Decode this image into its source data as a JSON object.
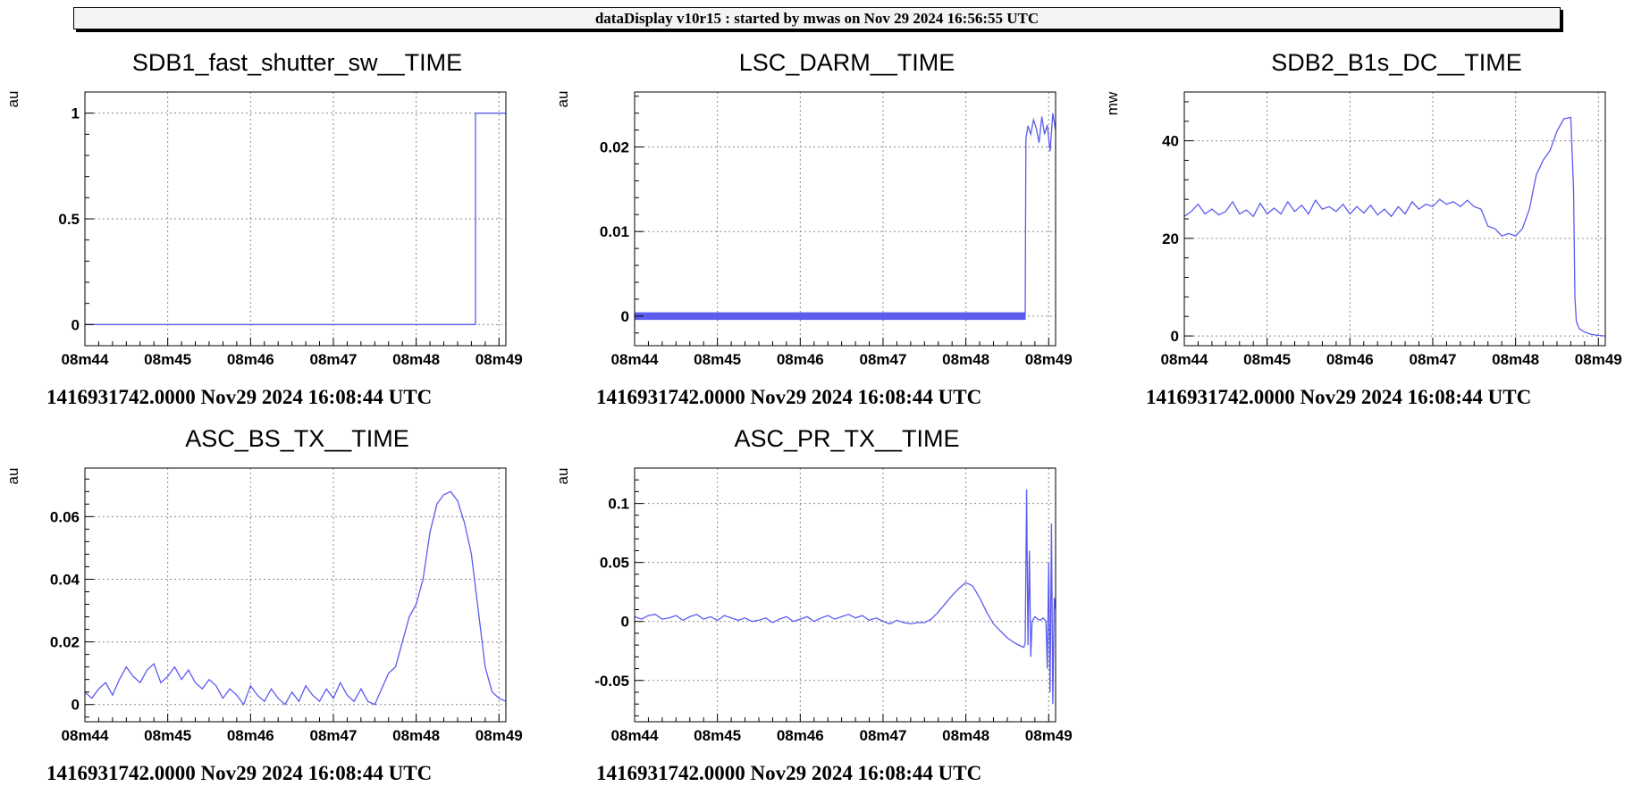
{
  "header": {
    "title": "dataDisplay v10r15 : started by mwas on Nov 29 2024 16:56:55 UTC"
  },
  "colors": {
    "trace": "#5b5bf0",
    "grid": "#8a8a8a",
    "axis": "#000000"
  },
  "chart_data": [
    {
      "type": "line",
      "title": "SDB1_fast_shutter_sw__TIME",
      "ylabel": "au",
      "footer": "1416931742.0000 Nov29 2024 16:08:44 UTC",
      "xlim": [
        0,
        305
      ],
      "ylim": [
        -0.1,
        1.1
      ],
      "x_ticks": [
        {
          "v": 0,
          "label": "08m44"
        },
        {
          "v": 60,
          "label": "08m45"
        },
        {
          "v": 120,
          "label": "08m46"
        },
        {
          "v": 180,
          "label": "08m47"
        },
        {
          "v": 240,
          "label": "08m48"
        },
        {
          "v": 300,
          "label": "08m49"
        }
      ],
      "y_ticks": [
        {
          "v": 0,
          "label": "0"
        },
        {
          "v": 0.5,
          "label": "0.5"
        },
        {
          "v": 1,
          "label": "1"
        }
      ],
      "series": [
        {
          "step": true,
          "x": [
            -5,
            283,
            283,
            305
          ],
          "y": [
            0,
            0,
            1,
            1
          ]
        }
      ]
    },
    {
      "type": "line",
      "title": "LSC_DARM__TIME",
      "ylabel": "au",
      "footer": "1416931742.0000 Nov29 2024 16:08:44 UTC",
      "xlim": [
        0,
        305
      ],
      "ylim": [
        -0.0035,
        0.0265
      ],
      "x_ticks": [
        {
          "v": 0,
          "label": "08m44"
        },
        {
          "v": 60,
          "label": "08m45"
        },
        {
          "v": 120,
          "label": "08m46"
        },
        {
          "v": 180,
          "label": "08m47"
        },
        {
          "v": 240,
          "label": "08m48"
        },
        {
          "v": 300,
          "label": "08m49"
        }
      ],
      "y_ticks": [
        {
          "v": 0,
          "label": "0"
        },
        {
          "v": 0.01,
          "label": "0.01"
        },
        {
          "v": 0.02,
          "label": "0.02"
        }
      ],
      "series": [
        {
          "band": true,
          "x": [
            -5,
            60,
            120,
            180,
            240,
            283
          ],
          "ymin": [
            -0.0004,
            -0.0004,
            -0.0004,
            -0.0004,
            -0.0004,
            -0.0004
          ],
          "ymax": [
            0.0004,
            0.0004,
            0.0004,
            0.0004,
            0.0004,
            0.0004
          ]
        },
        {
          "x": [
            283,
            283.5,
            285,
            287,
            289,
            291,
            293,
            295,
            297,
            299,
            301,
            303,
            305
          ],
          "y": [
            0,
            0.021,
            0.0225,
            0.0215,
            0.0232,
            0.0222,
            0.0205,
            0.0236,
            0.0215,
            0.0226,
            0.0195,
            0.024,
            0.022
          ]
        }
      ]
    },
    {
      "type": "line",
      "title": "SDB2_B1s_DC__TIME",
      "ylabel": "mw",
      "footer": "1416931742.0000 Nov29 2024 16:08:44 UTC",
      "xlim": [
        0,
        305
      ],
      "ylim": [
        -2,
        50
      ],
      "x_ticks": [
        {
          "v": 0,
          "label": "08m44"
        },
        {
          "v": 60,
          "label": "08m45"
        },
        {
          "v": 120,
          "label": "08m46"
        },
        {
          "v": 180,
          "label": "08m47"
        },
        {
          "v": 240,
          "label": "08m48"
        },
        {
          "v": 300,
          "label": "08m49"
        }
      ],
      "y_ticks": [
        {
          "v": 0,
          "label": "0"
        },
        {
          "v": 20,
          "label": "20"
        },
        {
          "v": 40,
          "label": "40"
        }
      ],
      "series": [
        {
          "x": [
            -5,
            0,
            5,
            10,
            15,
            20,
            25,
            30,
            35,
            40,
            45,
            50,
            55,
            60,
            65,
            70,
            75,
            80,
            85,
            90,
            95,
            100,
            105,
            110,
            115,
            120,
            125,
            130,
            135,
            140,
            145,
            150,
            155,
            160,
            165,
            170,
            175,
            180,
            185,
            190,
            195,
            200,
            205,
            210,
            215,
            220,
            225,
            230,
            235,
            240,
            245,
            250,
            255,
            260,
            265,
            270,
            275,
            280,
            282,
            283,
            284,
            286,
            290,
            295,
            300,
            305
          ],
          "y": [
            25,
            24.5,
            25.5,
            27,
            25,
            26,
            24.8,
            25.5,
            27.5,
            25,
            25.8,
            24.5,
            27.2,
            25,
            26.2,
            25,
            27.5,
            25.5,
            26.8,
            25,
            27.8,
            26,
            26.5,
            25.5,
            27,
            25,
            26.5,
            25.2,
            26.8,
            24.8,
            26,
            24.5,
            26.5,
            25,
            27.5,
            26,
            27,
            26.5,
            28,
            27,
            27.5,
            26.5,
            27.8,
            26.5,
            26,
            22.5,
            22,
            20.5,
            21,
            20.5,
            22,
            26,
            33,
            36,
            38,
            42,
            44.5,
            44.8,
            30,
            8,
            3,
            1.5,
            0.8,
            0.3,
            0.1,
            0
          ]
        }
      ]
    },
    {
      "type": "line",
      "title": "ASC_BS_TX__TIME",
      "ylabel": "au",
      "footer": "1416931742.0000 Nov29 2024 16:08:44 UTC",
      "xlim": [
        0,
        305
      ],
      "ylim": [
        -0.0055,
        0.0755
      ],
      "x_ticks": [
        {
          "v": 0,
          "label": "08m44"
        },
        {
          "v": 60,
          "label": "08m45"
        },
        {
          "v": 120,
          "label": "08m46"
        },
        {
          "v": 180,
          "label": "08m47"
        },
        {
          "v": 240,
          "label": "08m48"
        },
        {
          "v": 300,
          "label": "08m49"
        }
      ],
      "y_ticks": [
        {
          "v": 0,
          "label": "0"
        },
        {
          "v": 0.02,
          "label": "0.02"
        },
        {
          "v": 0.04,
          "label": "0.04"
        },
        {
          "v": 0.06,
          "label": "0.06"
        }
      ],
      "series": [
        {
          "x": [
            -5,
            0,
            5,
            10,
            15,
            20,
            25,
            30,
            35,
            40,
            45,
            50,
            55,
            60,
            65,
            70,
            75,
            80,
            85,
            90,
            95,
            100,
            105,
            110,
            115,
            120,
            125,
            130,
            135,
            140,
            145,
            150,
            155,
            160,
            165,
            170,
            175,
            180,
            185,
            190,
            195,
            200,
            205,
            210,
            215,
            220,
            225,
            230,
            235,
            240,
            245,
            250,
            255,
            260,
            265,
            270,
            275,
            280,
            285,
            290,
            295,
            300,
            305
          ],
          "y": [
            0.008,
            0.004,
            0.002,
            0.005,
            0.007,
            0.003,
            0.008,
            0.012,
            0.009,
            0.007,
            0.011,
            0.013,
            0.007,
            0.009,
            0.012,
            0.008,
            0.011,
            0.007,
            0.005,
            0.008,
            0.006,
            0.002,
            0.005,
            0.003,
            0.0,
            0.006,
            0.003,
            0.001,
            0.005,
            0.002,
            0.0,
            0.004,
            0.001,
            0.006,
            0.003,
            0.001,
            0.005,
            0.002,
            0.007,
            0.003,
            0.001,
            0.005,
            0.001,
            0.0,
            0.005,
            0.01,
            0.012,
            0.02,
            0.028,
            0.032,
            0.04,
            0.055,
            0.064,
            0.067,
            0.068,
            0.065,
            0.058,
            0.048,
            0.03,
            0.012,
            0.004,
            0.002,
            0.001
          ]
        }
      ]
    },
    {
      "type": "line",
      "title": "ASC_PR_TX__TIME",
      "ylabel": "au",
      "footer": "1416931742.0000 Nov29 2024 16:08:44 UTC",
      "xlim": [
        0,
        305
      ],
      "ylim": [
        -0.085,
        0.13
      ],
      "x_ticks": [
        {
          "v": 0,
          "label": "08m44"
        },
        {
          "v": 60,
          "label": "08m45"
        },
        {
          "v": 120,
          "label": "08m46"
        },
        {
          "v": 180,
          "label": "08m47"
        },
        {
          "v": 240,
          "label": "08m48"
        },
        {
          "v": 300,
          "label": "08m49"
        }
      ],
      "y_ticks": [
        {
          "v": -0.05,
          "label": "-0.05"
        },
        {
          "v": 0,
          "label": "0"
        },
        {
          "v": 0.05,
          "label": "0.05"
        },
        {
          "v": 0.1,
          "label": "0.1"
        }
      ],
      "series": [
        {
          "x": [
            -5,
            0,
            5,
            10,
            15,
            20,
            25,
            30,
            35,
            40,
            45,
            50,
            55,
            60,
            65,
            70,
            75,
            80,
            85,
            90,
            95,
            100,
            105,
            110,
            115,
            120,
            125,
            130,
            135,
            140,
            145,
            150,
            155,
            160,
            165,
            170,
            175,
            180,
            185,
            190,
            195,
            200,
            205,
            210,
            215,
            220,
            225,
            230,
            235,
            240,
            245,
            250,
            255,
            260,
            265,
            270,
            275,
            280,
            282,
            283,
            284,
            285,
            286,
            287,
            288,
            290,
            292,
            294,
            296,
            298,
            299,
            300,
            301,
            302,
            303,
            304,
            305
          ],
          "y": [
            0.004,
            0.004,
            0.002,
            0.005,
            0.006,
            0.002,
            0.003,
            0.005,
            0.001,
            0.004,
            0.006,
            0.002,
            0.004,
            0.001,
            0.005,
            0.003,
            0.001,
            0.003,
            0.0,
            0.001,
            0.003,
            -0.001,
            0.002,
            0.004,
            0.0,
            0.002,
            0.004,
            0.0,
            0.003,
            0.005,
            0.002,
            0.004,
            0.006,
            0.003,
            0.005,
            0.001,
            0.003,
            0.0,
            -0.002,
            0.001,
            -0.001,
            -0.002,
            -0.001,
            -0.001,
            0.002,
            0.008,
            0.015,
            0.022,
            0.028,
            0.033,
            0.03,
            0.02,
            0.008,
            -0.002,
            -0.008,
            -0.014,
            -0.018,
            -0.021,
            -0.022,
            -0.018,
            0.112,
            -0.02,
            0.06,
            -0.03,
            0.0,
            0.004,
            0.002,
            0.001,
            0.003,
            0.0,
            -0.04,
            0.05,
            -0.06,
            0.083,
            -0.07,
            0.02,
            0.01
          ]
        }
      ]
    }
  ]
}
